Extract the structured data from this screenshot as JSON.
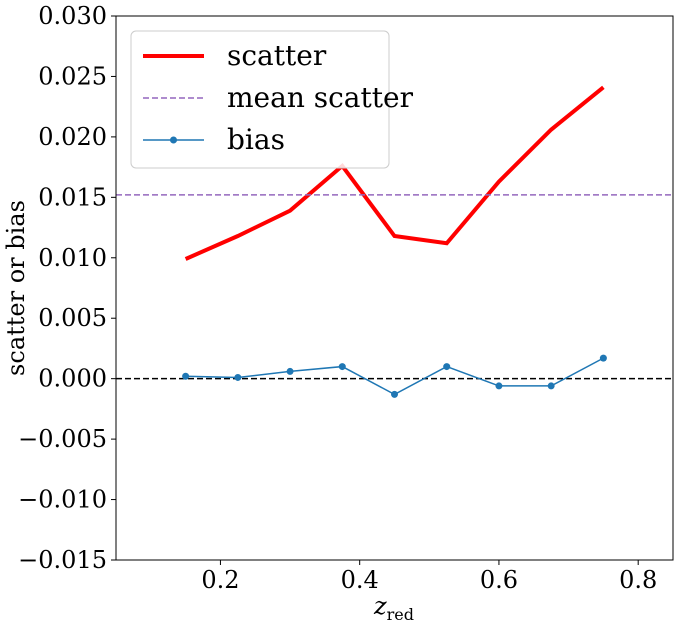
{
  "chart_data": {
    "type": "line",
    "xlabel_main": "z",
    "xlabel_sub": "red",
    "ylabel": "scatter or bias",
    "xlim": [
      0.05,
      0.85
    ],
    "ylim": [
      -0.015,
      0.03
    ],
    "x_ticks": [
      0.2,
      0.4,
      0.6,
      0.8
    ],
    "x_tick_labels": [
      "0.2",
      "0.4",
      "0.6",
      "0.8"
    ],
    "y_ticks": [
      -0.015,
      -0.01,
      -0.005,
      0.0,
      0.005,
      0.01,
      0.015,
      0.02,
      0.025,
      0.03
    ],
    "y_tick_labels": [
      "−0.015",
      "−0.010",
      "−0.005",
      "0.000",
      "0.005",
      "0.010",
      "0.015",
      "0.020",
      "0.025",
      "0.030"
    ],
    "grid": false,
    "legend_position": "upper-left",
    "series": [
      {
        "name": "scatter",
        "style": "solid-thick",
        "color": "#ff0000",
        "x": [
          0.15,
          0.225,
          0.3,
          0.375,
          0.45,
          0.525,
          0.6,
          0.675,
          0.75
        ],
        "values": [
          0.0099,
          0.0118,
          0.0139,
          0.0176,
          0.0118,
          0.0112,
          0.0163,
          0.0206,
          0.0241
        ]
      },
      {
        "name": "mean scatter",
        "style": "dashed-hline",
        "color": "#9467bd",
        "value": 0.0152
      },
      {
        "name": "bias",
        "style": "line-markers",
        "color": "#1f77b4",
        "x": [
          0.15,
          0.225,
          0.3,
          0.375,
          0.45,
          0.525,
          0.6,
          0.675,
          0.75
        ],
        "values": [
          0.0002,
          0.0001,
          0.0006,
          0.001,
          -0.0013,
          0.001,
          -0.0006,
          -0.0006,
          0.0017
        ]
      }
    ],
    "reference_line": {
      "value": 0.0,
      "color": "#000000",
      "style": "dashed"
    }
  }
}
